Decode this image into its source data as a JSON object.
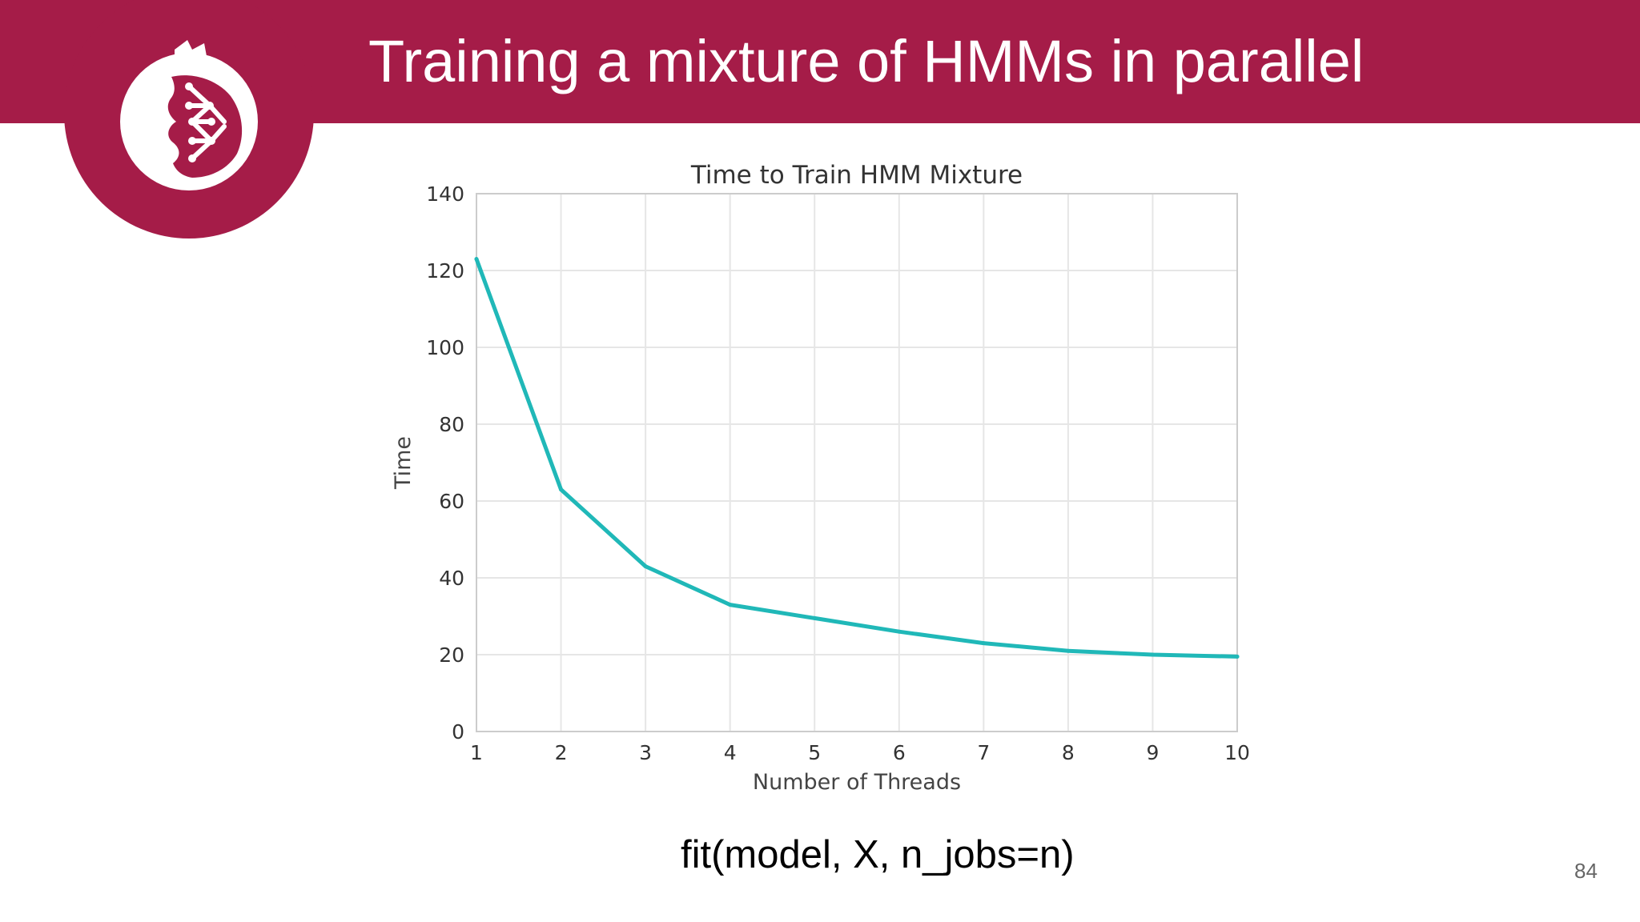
{
  "slide": {
    "title": "Training a mixture of HMMs in parallel",
    "code_caption": "fit(model, X, n_jobs=n)",
    "page_number": "84"
  },
  "colors": {
    "brand": "#a51c48",
    "line": "#20b8b8",
    "grid": "#e6e6e6"
  },
  "logo": {
    "icon": "pomegranate-network-logo-icon"
  },
  "chart_data": {
    "type": "line",
    "title": "Time to Train HMM Mixture",
    "xlabel": "Number of Threads",
    "ylabel": "Time",
    "x": [
      1,
      2,
      3,
      4,
      5,
      6,
      7,
      8,
      9,
      10
    ],
    "xticks": [
      "1",
      "2",
      "3",
      "4",
      "5",
      "6",
      "7",
      "8",
      "9",
      "10"
    ],
    "yticks": [
      "0",
      "20",
      "40",
      "60",
      "80",
      "100",
      "120",
      "140"
    ],
    "xlim": [
      1,
      10
    ],
    "ylim": [
      0,
      140
    ],
    "grid": true,
    "series": [
      {
        "values": [
          123,
          63,
          43,
          33,
          29.5,
          26,
          23,
          21,
          20,
          19.5
        ]
      }
    ]
  }
}
